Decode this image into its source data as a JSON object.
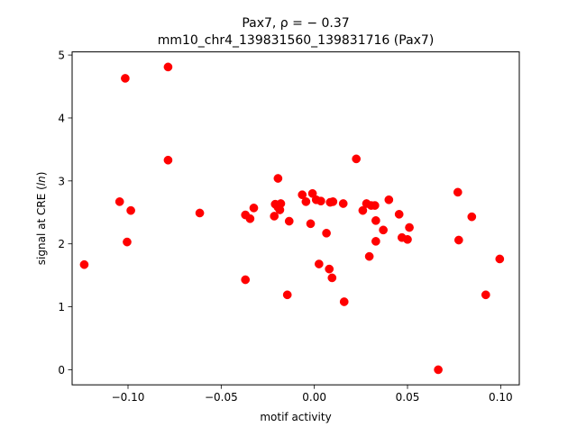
{
  "chart_data": {
    "type": "scatter",
    "title_line1": "Pax7, ρ = − 0.37",
    "title_line2": "mm10_chr4_139831560_139831716 (Pax7)",
    "xlabel": "motif activity",
    "ylabel": "signal at CRE (ln)",
    "xlim": [
      -0.13,
      0.11
    ],
    "ylim": [
      -0.24,
      5.05
    ],
    "xticks": [
      -0.1,
      -0.05,
      0.0,
      0.05,
      0.1
    ],
    "xtick_labels": [
      "−0.10",
      "−0.05",
      "0.00",
      "0.05",
      "0.10"
    ],
    "yticks": [
      0,
      1,
      2,
      3,
      4,
      5
    ],
    "ytick_labels": [
      "0",
      "1",
      "2",
      "3",
      "4",
      "5"
    ],
    "grid": false,
    "marker_color": "#ff0000",
    "points": [
      {
        "x": -0.1235,
        "y": 1.67
      },
      {
        "x": -0.1045,
        "y": 2.67
      },
      {
        "x": -0.1015,
        "y": 4.63
      },
      {
        "x": -0.1005,
        "y": 2.03
      },
      {
        "x": -0.0985,
        "y": 2.53
      },
      {
        "x": -0.0785,
        "y": 4.81
      },
      {
        "x": -0.0785,
        "y": 3.33
      },
      {
        "x": -0.0615,
        "y": 2.49
      },
      {
        "x": -0.037,
        "y": 2.46
      },
      {
        "x": -0.037,
        "y": 1.43
      },
      {
        "x": -0.0345,
        "y": 2.4
      },
      {
        "x": -0.0325,
        "y": 2.57
      },
      {
        "x": -0.0215,
        "y": 2.44
      },
      {
        "x": -0.021,
        "y": 2.63
      },
      {
        "x": -0.0195,
        "y": 3.04
      },
      {
        "x": -0.0195,
        "y": 2.58
      },
      {
        "x": -0.0185,
        "y": 2.54
      },
      {
        "x": -0.018,
        "y": 2.64
      },
      {
        "x": -0.0145,
        "y": 1.19
      },
      {
        "x": -0.0135,
        "y": 2.36
      },
      {
        "x": -0.0065,
        "y": 2.78
      },
      {
        "x": -0.0045,
        "y": 2.67
      },
      {
        "x": -0.002,
        "y": 2.32
      },
      {
        "x": -0.001,
        "y": 2.8
      },
      {
        "x": 0.001,
        "y": 2.7
      },
      {
        "x": 0.0025,
        "y": 1.68
      },
      {
        "x": 0.0035,
        "y": 2.68
      },
      {
        "x": 0.0065,
        "y": 2.17
      },
      {
        "x": 0.008,
        "y": 1.6
      },
      {
        "x": 0.0085,
        "y": 2.66
      },
      {
        "x": 0.0095,
        "y": 1.46
      },
      {
        "x": 0.01,
        "y": 2.67
      },
      {
        "x": 0.0155,
        "y": 2.64
      },
      {
        "x": 0.016,
        "y": 1.08
      },
      {
        "x": 0.0225,
        "y": 3.35
      },
      {
        "x": 0.026,
        "y": 2.53
      },
      {
        "x": 0.028,
        "y": 2.64
      },
      {
        "x": 0.0295,
        "y": 1.8
      },
      {
        "x": 0.0305,
        "y": 2.61
      },
      {
        "x": 0.0325,
        "y": 2.61
      },
      {
        "x": 0.033,
        "y": 2.37
      },
      {
        "x": 0.033,
        "y": 2.04
      },
      {
        "x": 0.037,
        "y": 2.22
      },
      {
        "x": 0.04,
        "y": 2.7
      },
      {
        "x": 0.0455,
        "y": 2.47
      },
      {
        "x": 0.047,
        "y": 2.1
      },
      {
        "x": 0.05,
        "y": 2.07
      },
      {
        "x": 0.051,
        "y": 2.26
      },
      {
        "x": 0.0665,
        "y": 0.0
      },
      {
        "x": 0.077,
        "y": 2.82
      },
      {
        "x": 0.0775,
        "y": 2.06
      },
      {
        "x": 0.0845,
        "y": 2.43
      },
      {
        "x": 0.092,
        "y": 1.19
      },
      {
        "x": 0.0995,
        "y": 1.76
      }
    ]
  }
}
